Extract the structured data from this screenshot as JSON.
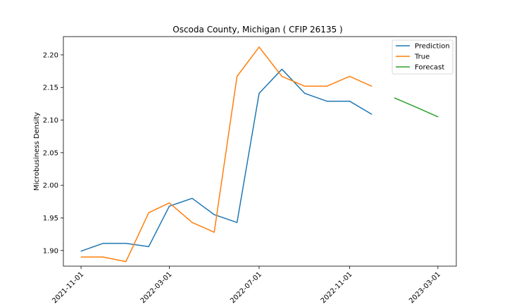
{
  "chart_data": {
    "type": "line",
    "title": "Oscoda County, Michigan ( CFIP 26135 )",
    "xlabel": "",
    "ylabel": "Microbusiness Density",
    "x_ticks": [
      "2021-11-01",
      "2022-03-01",
      "2022-07-01",
      "2022-11-01",
      "2023-03-01"
    ],
    "y_ticks": [
      "1.90",
      "1.95",
      "2.00",
      "2.05",
      "2.10",
      "2.15",
      "2.20"
    ],
    "ylim": [
      1.876,
      2.228
    ],
    "xlim": [
      "2021-10-08",
      "2023-03-26"
    ],
    "legend_position": "top-right",
    "grid": false,
    "series": [
      {
        "name": "Prediction",
        "color": "#1f77b4",
        "x": [
          "2021-11-01",
          "2021-12-01",
          "2022-01-01",
          "2022-02-01",
          "2022-03-01",
          "2022-04-01",
          "2022-05-01",
          "2022-06-01",
          "2022-07-01",
          "2022-08-01",
          "2022-09-01",
          "2022-10-01",
          "2022-11-01",
          "2022-12-01"
        ],
        "values": [
          1.899,
          1.911,
          1.911,
          1.906,
          1.968,
          1.98,
          1.955,
          1.943,
          2.141,
          2.178,
          2.141,
          2.129,
          2.129,
          2.109
        ]
      },
      {
        "name": "True",
        "color": "#ff7f0e",
        "x": [
          "2021-11-01",
          "2021-12-01",
          "2022-01-01",
          "2022-02-01",
          "2022-03-01",
          "2022-04-01",
          "2022-05-01",
          "2022-06-01",
          "2022-07-01",
          "2022-08-01",
          "2022-09-01",
          "2022-10-01",
          "2022-11-01",
          "2022-12-01"
        ],
        "values": [
          1.89,
          1.89,
          1.883,
          1.958,
          1.973,
          1.943,
          1.928,
          2.167,
          2.212,
          2.167,
          2.152,
          2.152,
          2.167,
          2.152
        ]
      },
      {
        "name": "Forecast",
        "color": "#2ca02c",
        "x": [
          "2023-01-01",
          "2023-02-01",
          "2023-03-01"
        ],
        "values": [
          2.134,
          2.119,
          2.105
        ]
      }
    ]
  }
}
